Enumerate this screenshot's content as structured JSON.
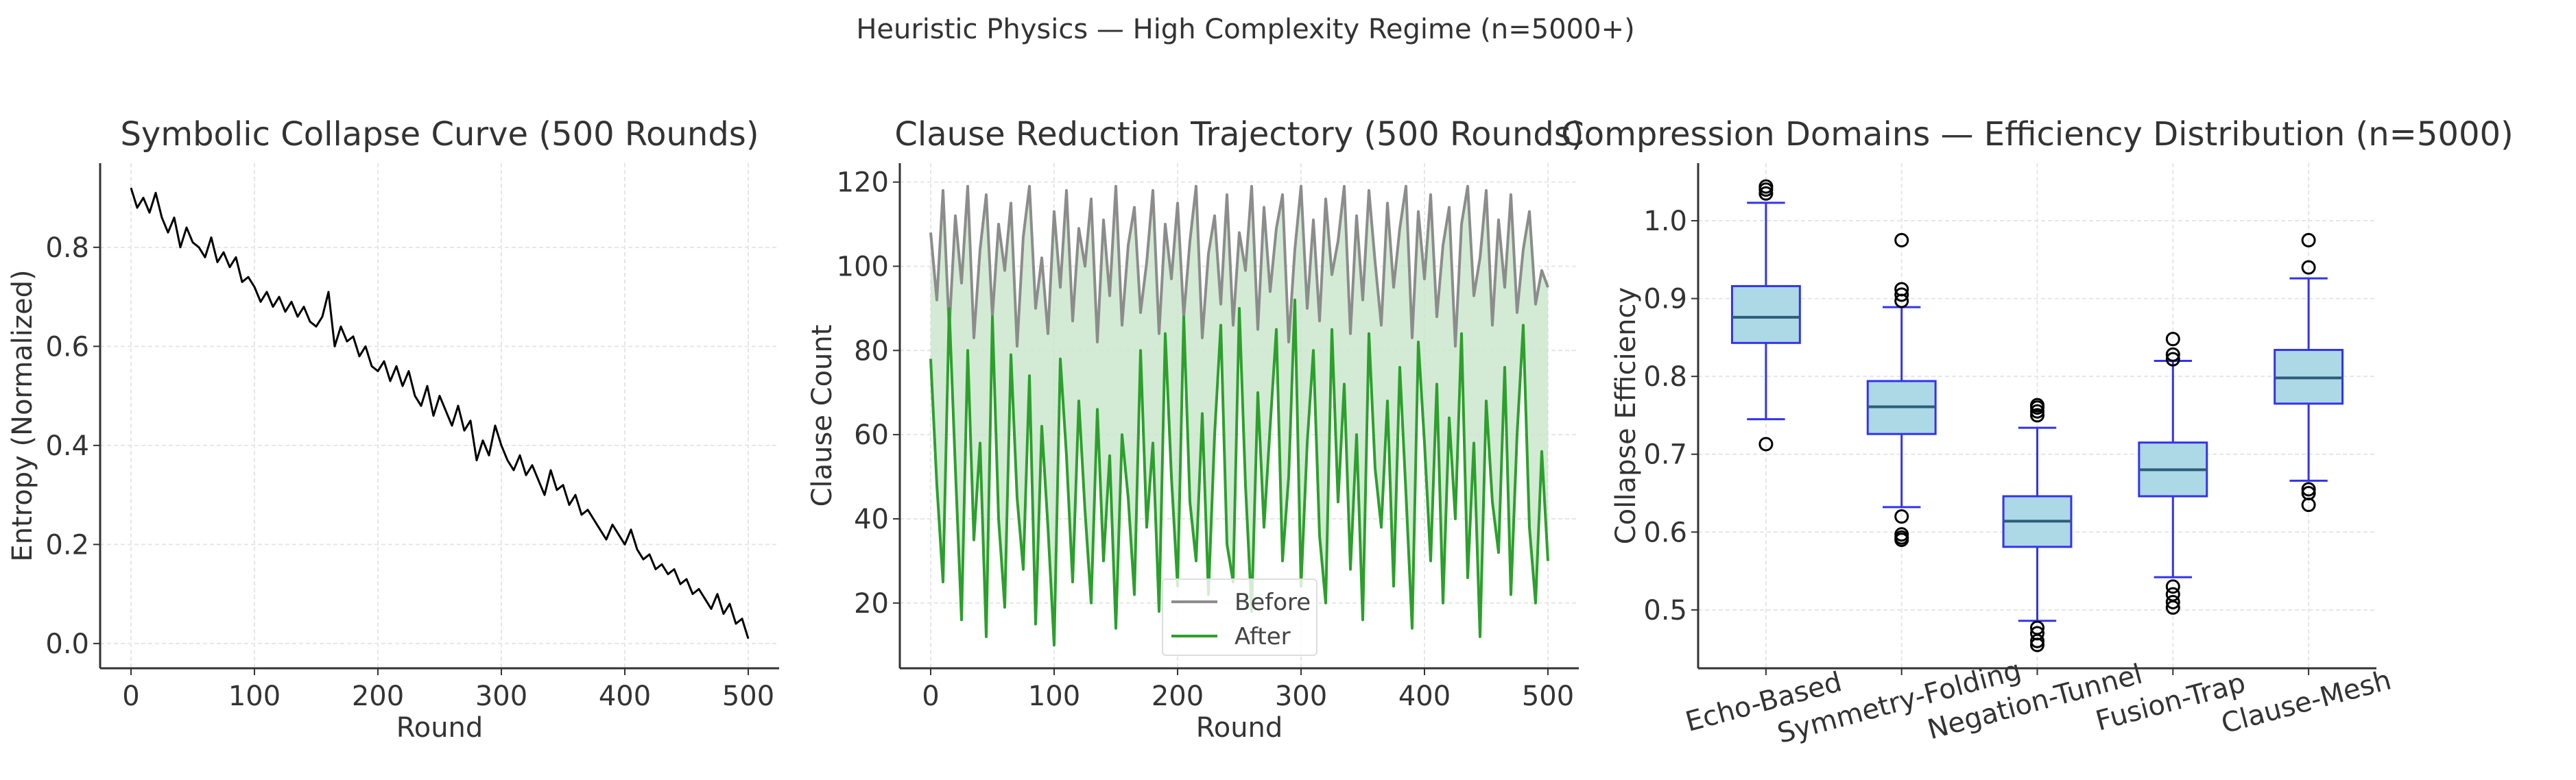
{
  "suptitle": "Heuristic Physics — High Complexity Regime (n=5000+)",
  "chart_data": [
    {
      "type": "line",
      "title": "Symbolic Collapse Curve (500 Rounds)",
      "xlabel": "Round",
      "ylabel": "Entropy (Normalized)",
      "xlim": [
        -25,
        525
      ],
      "ylim": [
        -0.05,
        0.97
      ],
      "xticks": [
        0,
        100,
        200,
        300,
        400,
        500
      ],
      "yticks": [
        0.0,
        0.2,
        0.4,
        0.6,
        0.8
      ],
      "ytick_labels": [
        "0.0",
        "0.2",
        "0.4",
        "0.6",
        "0.8"
      ],
      "grid": true,
      "x_step": 5,
      "series": [
        {
          "color": "#000000",
          "values": [
            0.92,
            0.88,
            0.9,
            0.87,
            0.91,
            0.86,
            0.83,
            0.86,
            0.8,
            0.84,
            0.81,
            0.8,
            0.78,
            0.82,
            0.77,
            0.79,
            0.76,
            0.78,
            0.73,
            0.74,
            0.72,
            0.69,
            0.71,
            0.68,
            0.7,
            0.67,
            0.69,
            0.66,
            0.68,
            0.65,
            0.64,
            0.66,
            0.71,
            0.6,
            0.64,
            0.61,
            0.62,
            0.58,
            0.6,
            0.56,
            0.55,
            0.57,
            0.53,
            0.56,
            0.52,
            0.55,
            0.5,
            0.48,
            0.52,
            0.46,
            0.5,
            0.47,
            0.44,
            0.48,
            0.43,
            0.45,
            0.37,
            0.41,
            0.38,
            0.44,
            0.4,
            0.37,
            0.35,
            0.38,
            0.34,
            0.36,
            0.33,
            0.3,
            0.35,
            0.31,
            0.32,
            0.28,
            0.3,
            0.26,
            0.27,
            0.25,
            0.23,
            0.21,
            0.24,
            0.22,
            0.2,
            0.23,
            0.19,
            0.17,
            0.18,
            0.15,
            0.16,
            0.14,
            0.15,
            0.12,
            0.13,
            0.1,
            0.11,
            0.09,
            0.07,
            0.1,
            0.06,
            0.08,
            0.04,
            0.05,
            0.01
          ]
        }
      ]
    },
    {
      "type": "line",
      "title": "Clause Reduction Trajectory (500 Rounds)",
      "xlabel": "Round",
      "ylabel": "Clause Count",
      "xlim": [
        -25,
        525
      ],
      "ylim": [
        4.5,
        124.5
      ],
      "xticks": [
        0,
        100,
        200,
        300,
        400,
        500
      ],
      "yticks": [
        20,
        40,
        60,
        80,
        100,
        120
      ],
      "grid": true,
      "legend": "lower center",
      "fill_between": {
        "color": "#c8e6c9"
      },
      "x_step": 5,
      "series": [
        {
          "name": "Before",
          "color": "#8c8c8c",
          "values": [
            108,
            92,
            118,
            85,
            112,
            96,
            119,
            83,
            104,
            117,
            88,
            110,
            99,
            115,
            81,
            107,
            119,
            90,
            102,
            84,
            113,
            95,
            118,
            87,
            109,
            100,
            116,
            82,
            111,
            93,
            119,
            86,
            105,
            114,
            89,
            101,
            118,
            84,
            110,
            97,
            115,
            88,
            106,
            119,
            83,
            103,
            112,
            91,
            117,
            86,
            108,
            99,
            119,
            85,
            114,
            94,
            109,
            117,
            82,
            104,
            119,
            90,
            111,
            87,
            116,
            98,
            106,
            119,
            84,
            112,
            92,
            118,
            101,
            86,
            115,
            95,
            109,
            119,
            83,
            113,
            97,
            117,
            88,
            105,
            114,
            81,
            110,
            119,
            93,
            102,
            118,
            86,
            111,
            95,
            117,
            89,
            104,
            113,
            91,
            99,
            95
          ]
        },
        {
          "name": "After",
          "color": "#2ca02c",
          "values": [
            78,
            48,
            25,
            90,
            52,
            16,
            80,
            35,
            58,
            12,
            88,
            40,
            19,
            79,
            45,
            28,
            74,
            15,
            62,
            38,
            10,
            78,
            55,
            25,
            68,
            42,
            20,
            66,
            30,
            55,
            14,
            60,
            45,
            22,
            80,
            38,
            58,
            18,
            84,
            50,
            24,
            88,
            44,
            30,
            65,
            22,
            60,
            86,
            34,
            25,
            90,
            48,
            18,
            70,
            38,
            62,
            85,
            30,
            50,
            92,
            24,
            58,
            80,
            36,
            20,
            85,
            44,
            72,
            28,
            60,
            16,
            84,
            52,
            38,
            68,
            24,
            76,
            46,
            14,
            82,
            58,
            30,
            72,
            20,
            64,
            40,
            84,
            26,
            58,
            12,
            68,
            44,
            32,
            76,
            22,
            60,
            86,
            38,
            20,
            56,
            30
          ]
        }
      ]
    },
    {
      "type": "box",
      "title": "Compression Domains — Efficiency Distribution (n=5000)",
      "ylabel": "Collapse Efficiency",
      "ylim": [
        0.425,
        1.074
      ],
      "yticks": [
        0.5,
        0.6,
        0.7,
        0.8,
        0.9,
        1.0
      ],
      "ytick_labels": [
        "0.5",
        "0.6",
        "0.7",
        "0.8",
        "0.9",
        "1.0"
      ],
      "grid": true,
      "xtick_rotation_deg": 15,
      "colors": {
        "box_fill": "#add8e6",
        "box_edge": "#3333ee",
        "median": "#2e5c7a",
        "outlier": "#000000"
      },
      "categories": [
        "Echo-Based",
        "Symmetry-Folding",
        "Negation-Tunnel",
        "Fusion-Trap",
        "Clause-Mesh"
      ],
      "boxes": [
        {
          "whislo": 0.745,
          "q1": 0.843,
          "med": 0.876,
          "q3": 0.916,
          "whishi": 1.023,
          "fliers": [
            0.713,
            1.035,
            1.04,
            1.044
          ]
        },
        {
          "whislo": 0.632,
          "q1": 0.726,
          "med": 0.761,
          "q3": 0.794,
          "whishi": 0.889,
          "fliers": [
            0.59,
            0.593,
            0.597,
            0.62,
            0.897,
            0.905,
            0.912,
            0.975
          ]
        },
        {
          "whislo": 0.486,
          "q1": 0.581,
          "med": 0.614,
          "q3": 0.646,
          "whishi": 0.734,
          "fliers": [
            0.455,
            0.46,
            0.47,
            0.477,
            0.75,
            0.755,
            0.76,
            0.763
          ]
        },
        {
          "whislo": 0.542,
          "q1": 0.646,
          "med": 0.68,
          "q3": 0.715,
          "whishi": 0.82,
          "fliers": [
            0.503,
            0.51,
            0.52,
            0.53,
            0.822,
            0.828,
            0.848
          ]
        },
        {
          "whislo": 0.666,
          "q1": 0.765,
          "med": 0.798,
          "q3": 0.834,
          "whishi": 0.926,
          "fliers": [
            0.635,
            0.65,
            0.655,
            0.94,
            0.975
          ]
        }
      ]
    }
  ]
}
